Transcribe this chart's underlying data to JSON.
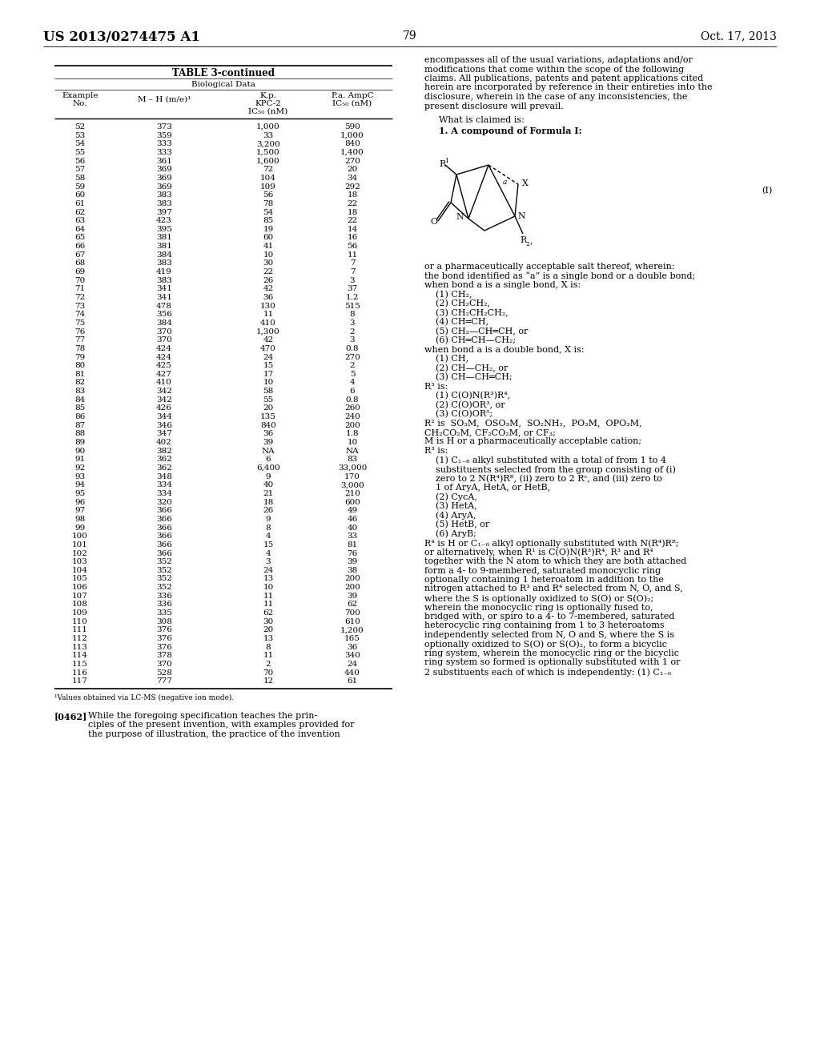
{
  "header_left": "US 2013/0274475 A1",
  "header_right": "Oct. 17, 2013",
  "page_number": "79",
  "table_title": "TABLE 3-continued",
  "table_subtitle": "Biological Data",
  "table_data": [
    [
      "52",
      "373",
      "1,000",
      "590"
    ],
    [
      "53",
      "359",
      "33",
      "1,000"
    ],
    [
      "54",
      "333",
      "3,200",
      "840"
    ],
    [
      "55",
      "333",
      "1,500",
      "1,400"
    ],
    [
      "56",
      "361",
      "1,600",
      "270"
    ],
    [
      "57",
      "369",
      "72",
      "20"
    ],
    [
      "58",
      "369",
      "104",
      "34"
    ],
    [
      "59",
      "369",
      "109",
      "292"
    ],
    [
      "60",
      "383",
      "56",
      "18"
    ],
    [
      "61",
      "383",
      "78",
      "22"
    ],
    [
      "62",
      "397",
      "54",
      "18"
    ],
    [
      "63",
      "423",
      "85",
      "22"
    ],
    [
      "64",
      "395",
      "19",
      "14"
    ],
    [
      "65",
      "381",
      "60",
      "16"
    ],
    [
      "66",
      "381",
      "41",
      "56"
    ],
    [
      "67",
      "384",
      "10",
      "11"
    ],
    [
      "68",
      "383",
      "30",
      "7"
    ],
    [
      "69",
      "419",
      "22",
      "7"
    ],
    [
      "70",
      "383",
      "26",
      "3"
    ],
    [
      "71",
      "341",
      "42",
      "37"
    ],
    [
      "72",
      "341",
      "36",
      "1.2"
    ],
    [
      "73",
      "478",
      "130",
      "515"
    ],
    [
      "74",
      "356",
      "11",
      "8"
    ],
    [
      "75",
      "384",
      "410",
      "3"
    ],
    [
      "76",
      "370",
      "1,300",
      "2"
    ],
    [
      "77",
      "370",
      "42",
      "3"
    ],
    [
      "78",
      "424",
      "470",
      "0.8"
    ],
    [
      "79",
      "424",
      "24",
      "270"
    ],
    [
      "80",
      "425",
      "15",
      "2"
    ],
    [
      "81",
      "427",
      "17",
      "5"
    ],
    [
      "82",
      "410",
      "10",
      "4"
    ],
    [
      "83",
      "342",
      "58",
      "6"
    ],
    [
      "84",
      "342",
      "55",
      "0.8"
    ],
    [
      "85",
      "426",
      "20",
      "260"
    ],
    [
      "86",
      "344",
      "135",
      "240"
    ],
    [
      "87",
      "346",
      "840",
      "200"
    ],
    [
      "88",
      "347",
      "36",
      "1.8"
    ],
    [
      "89",
      "402",
      "39",
      "10"
    ],
    [
      "90",
      "382",
      "NA",
      "NA"
    ],
    [
      "91",
      "362",
      "6",
      "83"
    ],
    [
      "92",
      "362",
      "6,400",
      "33,000"
    ],
    [
      "93",
      "348",
      "9",
      "170"
    ],
    [
      "94",
      "334",
      "40",
      "3,000"
    ],
    [
      "95",
      "334",
      "21",
      "210"
    ],
    [
      "96",
      "320",
      "18",
      "600"
    ],
    [
      "97",
      "366",
      "26",
      "49"
    ],
    [
      "98",
      "366",
      "9",
      "46"
    ],
    [
      "99",
      "366",
      "8",
      "40"
    ],
    [
      "100",
      "366",
      "4",
      "33"
    ],
    [
      "101",
      "366",
      "15",
      "81"
    ],
    [
      "102",
      "366",
      "4",
      "76"
    ],
    [
      "103",
      "352",
      "3",
      "39"
    ],
    [
      "104",
      "352",
      "24",
      "38"
    ],
    [
      "105",
      "352",
      "13",
      "200"
    ],
    [
      "106",
      "352",
      "10",
      "200"
    ],
    [
      "107",
      "336",
      "11",
      "39"
    ],
    [
      "108",
      "336",
      "11",
      "62"
    ],
    [
      "109",
      "335",
      "62",
      "700"
    ],
    [
      "110",
      "308",
      "30",
      "610"
    ],
    [
      "111",
      "376",
      "20",
      "1,200"
    ],
    [
      "112",
      "376",
      "13",
      "165"
    ],
    [
      "113",
      "376",
      "8",
      "36"
    ],
    [
      "114",
      "378",
      "11",
      "340"
    ],
    [
      "115",
      "370",
      "2",
      "24"
    ],
    [
      "116",
      "528",
      "70",
      "440"
    ],
    [
      "117",
      "777",
      "12",
      "61"
    ]
  ],
  "footnote": "¹Values obtained via LC-MS (negative ion mode).",
  "bg_color": "#f0f0f0",
  "page_bg": "#ffffff"
}
